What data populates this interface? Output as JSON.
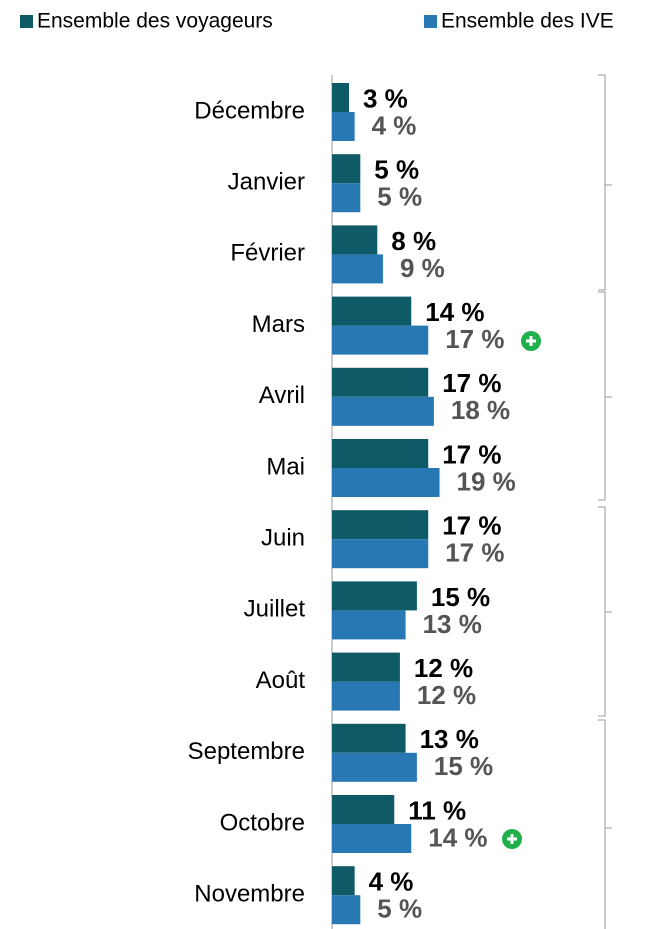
{
  "chart_data": {
    "type": "bar",
    "orientation": "horizontal",
    "categories": [
      "Décembre",
      "Janvier",
      "Février",
      "Mars",
      "Avril",
      "Mai",
      "Juin",
      "Juillet",
      "Août",
      "Septembre",
      "Octobre",
      "Novembre"
    ],
    "series": [
      {
        "name": "Ensemble des voyageurs",
        "color": "#0e5a66",
        "values": [
          3,
          5,
          8,
          14,
          17,
          17,
          17,
          15,
          12,
          13,
          11,
          4
        ],
        "value_labels": [
          "3 %",
          "5 %",
          "8 %",
          "14 %",
          "17 %",
          "17 %",
          "17 %",
          "15 %",
          "12 %",
          "13 %",
          "11 %",
          "4 %"
        ]
      },
      {
        "name": "Ensemble des IVE",
        "color": "#2878b4",
        "values": [
          4,
          5,
          9,
          17,
          18,
          19,
          17,
          13,
          12,
          15,
          14,
          5
        ],
        "value_labels": [
          "4 %",
          "5 %",
          "9 %",
          "17 %",
          "18 %",
          "19 %",
          "17 %",
          "13 %",
          "12 %",
          "15 %",
          "14 %",
          "5 %"
        ]
      }
    ],
    "legend": "top"
  }
}
